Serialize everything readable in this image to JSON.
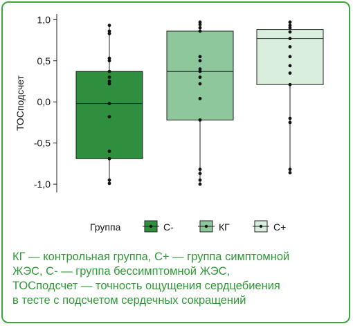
{
  "chart_data": {
    "type": "boxplot",
    "ylabel": "ТОСподсчет",
    "yticks": [
      "1,0",
      "0,5",
      "0,0",
      "-0,5",
      "-1,0"
    ],
    "ytick_values": [
      1.0,
      0.5,
      0.0,
      -0.5,
      -1.0
    ],
    "ylim": [
      -1.1,
      1.07
    ],
    "legend_title": "Группа",
    "legend_position": "bottom",
    "grid": false,
    "groups": [
      {
        "name": "С-",
        "color": "#2f8f3f",
        "q1": -0.69,
        "median": -0.02,
        "q3": 0.37,
        "whisker_low": -0.97,
        "whisker_high": 0.93,
        "points": [
          0.93,
          0.86,
          0.83,
          0.83,
          0.53,
          0.5,
          0.37,
          0.3,
          0.25,
          0.22,
          -0.02,
          -0.18,
          -0.6,
          -0.69,
          -0.95,
          -0.99
        ]
      },
      {
        "name": "КГ",
        "color": "#8ec79c",
        "q1": -0.22,
        "median": 0.37,
        "q3": 0.86,
        "whisker_low": -1.0,
        "whisker_high": 0.97,
        "points": [
          0.97,
          0.94,
          0.9,
          0.86,
          0.55,
          0.5,
          0.4,
          0.37,
          0.3,
          0.22,
          0.04,
          -0.22,
          -0.82,
          -0.87,
          -0.95,
          -1.0
        ]
      },
      {
        "name": "С+",
        "color": "#d9eedd",
        "q1": 0.21,
        "median": 0.77,
        "q3": 0.88,
        "whisker_low": -0.86,
        "whisker_high": 0.97,
        "points": [
          0.97,
          0.93,
          0.9,
          0.85,
          0.77,
          0.67,
          0.55,
          0.44,
          0.35,
          0.21,
          -0.2,
          -0.25,
          -0.82,
          -0.86
        ]
      }
    ]
  },
  "caption": {
    "lines": [
      "КГ — контрольная группа, С+ — группа симптомной",
      "ЖЭС, С- — группа бессимптомной ЖЭС,",
      "ТОСподсчет — точность ощущения сердцебиения",
      "в тесте с подсчетом сердечных сокращений"
    ]
  }
}
